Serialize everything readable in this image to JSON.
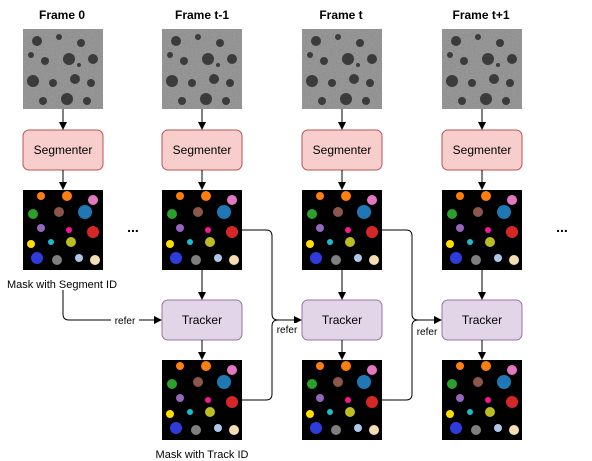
{
  "frames": [
    {
      "title": "Frame 0"
    },
    {
      "title": "Frame t-1"
    },
    {
      "title": "Frame t"
    },
    {
      "title": "Frame t+1"
    }
  ],
  "segmenter_label": "Segmenter",
  "tracker_label": "Tracker",
  "refer_label": "refer",
  "ellipsis": "...",
  "caption_segment": "Mask with Segment ID",
  "caption_track": "Mask with Track ID",
  "colors": {
    "segmenter_fill": "#f8cecc",
    "segmenter_stroke": "#b85450",
    "tracker_fill": "#e1d5e7",
    "tracker_stroke": "#9673a6",
    "mask_bg": "#000000",
    "micro_bg": "#8c8c8c"
  }
}
